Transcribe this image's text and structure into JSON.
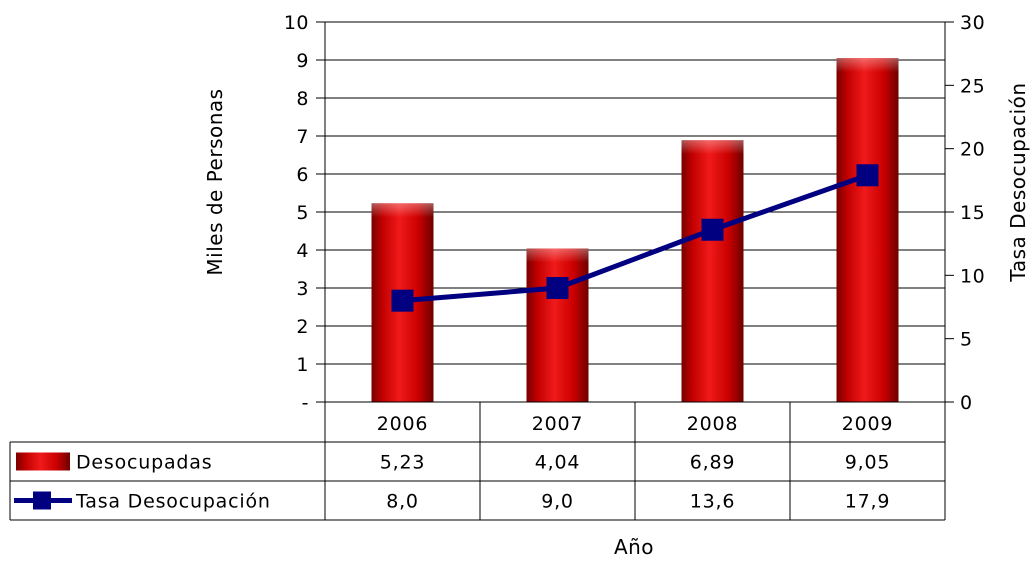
{
  "chart_data": {
    "type": "bar",
    "categories": [
      "2006",
      "2007",
      "2008",
      "2009"
    ],
    "series": [
      {
        "name": "Desocupadas",
        "type": "bar",
        "axis": "left",
        "color": "#cc0000",
        "values": [
          5.23,
          4.04,
          6.89,
          9.05
        ],
        "labels": [
          "5,23",
          "4,04",
          "6,89",
          "9,05"
        ]
      },
      {
        "name": "Tasa Desocupación",
        "type": "line",
        "axis": "right",
        "color": "#000080",
        "values": [
          8.0,
          9.0,
          13.6,
          17.9
        ],
        "labels": [
          "8,0",
          "9,0",
          "13,6",
          "17,9"
        ]
      }
    ],
    "xlabel": "Año",
    "ylabel": "Miles de Personas",
    "y2label": "Tasa Desocupación",
    "ylim": [
      0,
      10
    ],
    "y2lim": [
      0,
      30
    ],
    "yticks": [
      "-",
      "1",
      "2",
      "3",
      "4",
      "5",
      "6",
      "7",
      "8",
      "9",
      "10"
    ],
    "y2ticks": [
      "0",
      "5",
      "10",
      "15",
      "20",
      "25",
      "30"
    ],
    "grid": true,
    "legend": "data-table"
  }
}
